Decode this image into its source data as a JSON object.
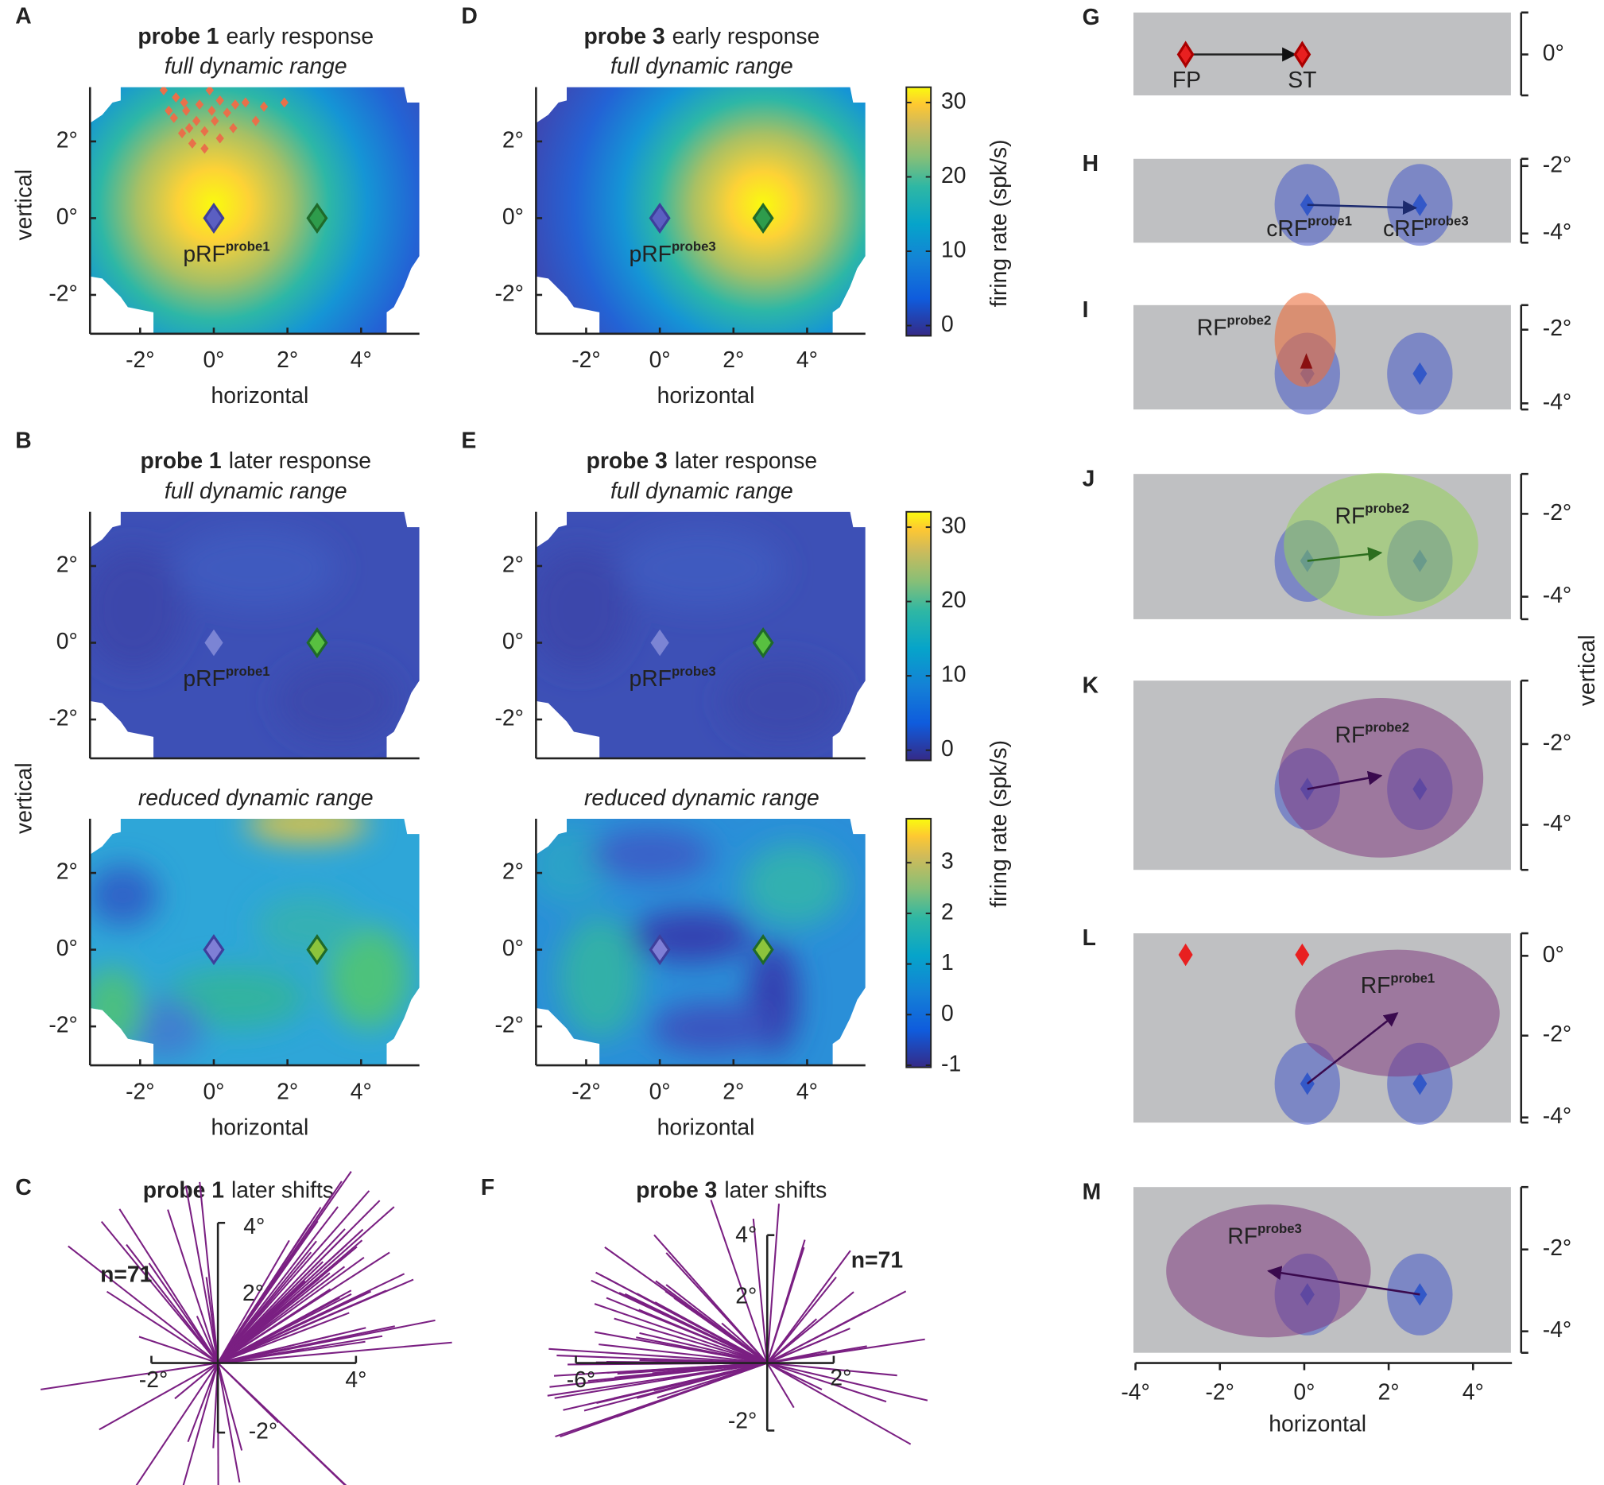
{
  "maps": [
    {
      "letter": "A",
      "title_bold": "probe 1",
      "title": "early response",
      "subtitle": "full dynamic range",
      "ylabel": "vertical",
      "yticks": [
        "2°",
        "0°",
        "-2°"
      ],
      "xticks": [
        "-2°",
        "0°",
        "2°",
        "4°"
      ],
      "xlabel": "horizontal",
      "prf": "pRF",
      "prf_sup": "probe1"
    },
    {
      "letter": "D",
      "title_bold": "probe 3",
      "title": "early response",
      "subtitle": "full dynamic range",
      "yticks": [
        "2°",
        "0°",
        "-2°"
      ],
      "xticks": [
        "-2°",
        "0°",
        "2°",
        "4°"
      ],
      "xlabel": "horizontal",
      "prf": "pRF",
      "prf_sup": "probe3",
      "colorbar": {
        "ticks": [
          30,
          20,
          10,
          0
        ],
        "label": "firing rate (spk/s)"
      }
    },
    {
      "letter": "B",
      "title_bold": "probe 1",
      "title": "later response",
      "subtitle": "full dynamic range",
      "ylabel": "vertical",
      "yticks": [
        "2°",
        "0°",
        "-2°"
      ],
      "prf": "pRF",
      "prf_sup": "probe1"
    },
    {
      "letter": "E",
      "title_bold": "probe 3",
      "title": "later response",
      "subtitle": "full dynamic range",
      "yticks": [
        "2°",
        "0°",
        "-2°"
      ],
      "prf": "pRF",
      "prf_sup": "probe3",
      "colorbar": {
        "ticks": [
          30,
          20,
          10,
          0
        ]
      }
    },
    {
      "subtitle": "reduced dynamic range",
      "yticks": [
        "2°",
        "0°",
        "-2°"
      ],
      "xticks": [
        "-2°",
        "0°",
        "2°",
        "4°"
      ],
      "xlabel": "horizontal"
    },
    {
      "subtitle": "reduced dynamic range",
      "yticks": [
        "2°",
        "0°",
        "-2°"
      ],
      "xticks": [
        "-2°",
        "0°",
        "2°",
        "4°"
      ],
      "xlabel": "horizontal",
      "colorbar": {
        "ticks": [
          3,
          2,
          1,
          0,
          -1
        ],
        "label": "firing rate (spk/s)"
      }
    }
  ],
  "shifts": [
    {
      "letter": "C",
      "title_bold": "probe 1",
      "title": "later shifts",
      "n": "n=71",
      "yticks": [
        "4°",
        "2°",
        "-2°"
      ],
      "xticks": [
        "-2°",
        "4°"
      ]
    },
    {
      "letter": "F",
      "title_bold": "probe 3",
      "title": "later shifts",
      "n": "n=71",
      "yticks": [
        "4°",
        "2°",
        "-2°"
      ],
      "xticks": [
        "-6°",
        "2°"
      ]
    }
  ],
  "schematic": [
    {
      "letter": "G",
      "yticks": [
        "0°"
      ],
      "labels": [
        {
          "text": "FP"
        },
        {
          "text": "ST"
        }
      ]
    },
    {
      "letter": "H",
      "yticks": [
        "-2°",
        "-4°"
      ],
      "labels": [
        {
          "text": "cRF",
          "sup": "probe1"
        },
        {
          "text": "cRF",
          "sup": "probe3"
        }
      ]
    },
    {
      "letter": "I",
      "yticks": [
        "-2°",
        "-4°"
      ],
      "labels": [
        {
          "text": "RF",
          "sup": "probe2"
        }
      ]
    },
    {
      "letter": "J",
      "yticks": [
        "-2°",
        "-4°"
      ],
      "labels": [
        {
          "text": "RF",
          "sup": "probe2"
        }
      ]
    },
    {
      "letter": "K",
      "yticks": [
        "-2°",
        "-4°"
      ],
      "labels": [
        {
          "text": "RF",
          "sup": "probe2"
        }
      ]
    },
    {
      "letter": "L",
      "yticks": [
        "0°",
        "-2°",
        "-4°"
      ],
      "labels": [
        {
          "text": "RF",
          "sup": "probe1"
        }
      ]
    },
    {
      "letter": "M",
      "yticks": [
        "-2°",
        "-4°"
      ],
      "labels": [
        {
          "text": "RF",
          "sup": "probe3"
        }
      ]
    }
  ],
  "schematic_axis": {
    "xticks": [
      "-4°",
      "-2°",
      "0°",
      "2°",
      "4°"
    ],
    "xlabel": "horizontal",
    "ylabel": "vertical"
  }
}
